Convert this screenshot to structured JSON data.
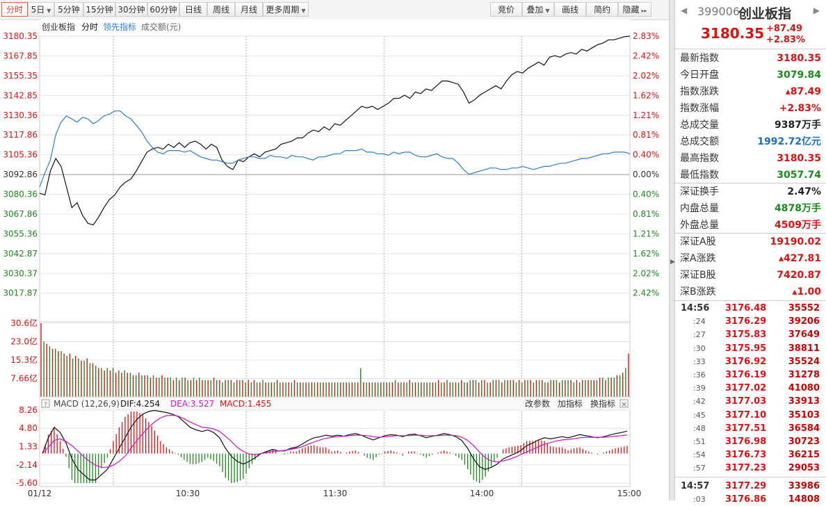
{
  "toolbar": {
    "left_buttons": [
      "分时",
      "5日",
      "5分钟",
      "15分钟",
      "30分钟",
      "60分钟",
      "日线",
      "周线",
      "月线",
      "更多周期"
    ],
    "right_buttons": [
      "竞价",
      "叠加",
      "画线",
      "简约",
      "隐藏"
    ]
  },
  "legend": {
    "name": "创业板指",
    "period": "分时",
    "lead": "领先指标",
    "amount": "成交额(元)"
  },
  "macd_bar": {
    "label": "MACD (12,26,9)",
    "dif": "DIF:4.254",
    "dea": "DEA:3.527",
    "macd": "MACD:1.455",
    "buttons": [
      "改参数",
      "加指标",
      "换指标"
    ]
  },
  "stock": {
    "code": "399006",
    "name": "创业板指",
    "price": "3180.35",
    "change": "+87.49",
    "change_pct": "+2.83%"
  },
  "stats": [
    {
      "label": "最新指数",
      "value": "3180.35",
      "color": "red"
    },
    {
      "label": "今日开盘",
      "value": "3079.84",
      "color": "green"
    },
    {
      "label": "指数涨跌",
      "value": "▴87.49",
      "color": "red"
    },
    {
      "label": "指数涨幅",
      "value": "+2.83%",
      "color": "red"
    },
    {
      "label": "总成交量",
      "value": "9387万手",
      "color": "dark"
    },
    {
      "label": "总成交额",
      "value": "1992.72亿元",
      "color": "blue"
    },
    {
      "label": "最高指数",
      "value": "3180.35",
      "color": "red"
    },
    {
      "label": "最低指数",
      "value": "3057.74",
      "color": "green"
    },
    {
      "label": "深证换手",
      "value": "2.47%",
      "color": "dark"
    },
    {
      "label": "内盘总量",
      "value": "4878万手",
      "color": "green"
    },
    {
      "label": "外盘总量",
      "value": "4509万手",
      "color": "red"
    },
    {
      "label": "深证A股",
      "value": "19190.02",
      "color": "red"
    },
    {
      "label": "深A涨跌",
      "value": "▴427.81",
      "color": "red"
    },
    {
      "label": "深证B股",
      "value": "7420.87",
      "color": "red"
    },
    {
      "label": "深B涨跌",
      "value": "▴1.00",
      "color": "red"
    }
  ],
  "ticks": [
    {
      "time": "14:56",
      "price": "3176.48",
      "vol": "35552"
    },
    {
      "time": ":24",
      "price": "3176.29",
      "vol": "39206"
    },
    {
      "time": ":27",
      "price": "3175.83",
      "vol": "37649"
    },
    {
      "time": ":30",
      "price": "3175.95",
      "vol": "38811"
    },
    {
      "time": ":33",
      "price": "3176.92",
      "vol": "35524"
    },
    {
      "time": ":36",
      "price": "3176.19",
      "vol": "31278"
    },
    {
      "time": ":39",
      "price": "3177.02",
      "vol": "41080"
    },
    {
      "time": ":42",
      "price": "3177.03",
      "vol": "33913"
    },
    {
      "time": ":45",
      "price": "3177.10",
      "vol": "35103"
    },
    {
      "time": ":48",
      "price": "3177.51",
      "vol": "36584"
    },
    {
      "time": ":51",
      "price": "3176.98",
      "vol": "30723"
    },
    {
      "time": ":54",
      "price": "3176.73",
      "vol": "36215"
    },
    {
      "time": ":57",
      "price": "3177.23",
      "vol": "29053"
    },
    {
      "time": "14:57",
      "price": "3177.29",
      "vol": "33986"
    },
    {
      "time": ":03",
      "price": "3176.86",
      "vol": "14808"
    }
  ],
  "colors": {
    "up": "#e01010",
    "down": "#1a8a1a",
    "price_line": "#111111",
    "lead_line": "#2a7fd0",
    "dif": "#111111",
    "dea": "#d010d0",
    "grid": "#e4e4e4",
    "grid_dash": "#b0b0b0"
  },
  "chart_data": {
    "type": "line",
    "title": "创业板指 分时",
    "prev_close": 3092.86,
    "y_labels_left": [
      "3180.35",
      "3167.85",
      "3155.35",
      "3142.85",
      "3130.36",
      "3117.86",
      "3105.36",
      "3092.86",
      "3080.36",
      "3067.86",
      "3055.36",
      "3042.87",
      "3030.37",
      "3017.87"
    ],
    "y_labels_right": [
      "2.83%",
      "2.42%",
      "2.02%",
      "1.62%",
      "1.21%",
      "0.81%",
      "0.40%",
      "0.00%",
      "0.40%",
      "0.81%",
      "1.21%",
      "1.62%",
      "2.02%",
      "2.42%"
    ],
    "x_labels": [
      "01/12",
      "10:30",
      "11:30",
      "14:00",
      "15:00"
    ],
    "price_series": {
      "name": "创业板指",
      "points": [
        [
          0,
          3081
        ],
        [
          2,
          3080
        ],
        [
          4,
          3095
        ],
        [
          6,
          3103
        ],
        [
          8,
          3098
        ],
        [
          10,
          3085
        ],
        [
          12,
          3072
        ],
        [
          14,
          3075
        ],
        [
          16,
          3067
        ],
        [
          18,
          3062
        ],
        [
          20,
          3061
        ],
        [
          22,
          3066
        ],
        [
          24,
          3072
        ],
        [
          26,
          3077
        ],
        [
          28,
          3080
        ],
        [
          30,
          3085
        ],
        [
          32,
          3088
        ],
        [
          34,
          3090
        ],
        [
          36,
          3095
        ],
        [
          38,
          3101
        ],
        [
          40,
          3107
        ],
        [
          42,
          3109
        ],
        [
          44,
          3110
        ],
        [
          46,
          3109
        ],
        [
          48,
          3112
        ],
        [
          50,
          3110
        ],
        [
          52,
          3113
        ],
        [
          54,
          3110
        ],
        [
          56,
          3113
        ],
        [
          58,
          3114
        ],
        [
          60,
          3112
        ],
        [
          62,
          3109
        ],
        [
          64,
          3112
        ],
        [
          66,
          3110
        ],
        [
          68,
          3102
        ],
        [
          70,
          3098
        ],
        [
          72,
          3096
        ],
        [
          74,
          3102
        ],
        [
          76,
          3101
        ],
        [
          78,
          3104
        ],
        [
          80,
          3106
        ],
        [
          82,
          3104
        ],
        [
          84,
          3107
        ],
        [
          86,
          3108
        ],
        [
          88,
          3109
        ],
        [
          90,
          3112
        ],
        [
          92,
          3113
        ],
        [
          94,
          3114
        ],
        [
          96,
          3116
        ],
        [
          98,
          3116
        ],
        [
          100,
          3119
        ],
        [
          102,
          3121
        ],
        [
          104,
          3120
        ],
        [
          106,
          3123
        ],
        [
          108,
          3121
        ],
        [
          110,
          3125
        ],
        [
          112,
          3124
        ],
        [
          114,
          3127
        ],
        [
          116,
          3130
        ],
        [
          118,
          3133
        ],
        [
          120,
          3136
        ],
        [
          122,
          3135
        ],
        [
          124,
          3136
        ],
        [
          126,
          3134
        ],
        [
          128,
          3136
        ],
        [
          130,
          3138
        ],
        [
          132,
          3141
        ],
        [
          134,
          3141
        ],
        [
          136,
          3143
        ],
        [
          138,
          3141
        ],
        [
          140,
          3145
        ],
        [
          142,
          3144
        ],
        [
          144,
          3147
        ],
        [
          146,
          3146
        ],
        [
          148,
          3149
        ],
        [
          150,
          3152
        ],
        [
          152,
          3152
        ],
        [
          154,
          3151
        ],
        [
          156,
          3150
        ],
        [
          158,
          3145
        ],
        [
          160,
          3138
        ],
        [
          162,
          3140
        ],
        [
          164,
          3143
        ],
        [
          166,
          3145
        ],
        [
          168,
          3147
        ],
        [
          170,
          3149
        ],
        [
          172,
          3147
        ],
        [
          174,
          3152
        ],
        [
          176,
          3156
        ],
        [
          178,
          3158
        ],
        [
          180,
          3157
        ],
        [
          182,
          3160
        ],
        [
          184,
          3162
        ],
        [
          186,
          3164
        ],
        [
          188,
          3162
        ],
        [
          190,
          3167
        ],
        [
          192,
          3168
        ],
        [
          194,
          3167
        ],
        [
          196,
          3169
        ],
        [
          198,
          3170
        ],
        [
          200,
          3169
        ],
        [
          202,
          3172
        ],
        [
          204,
          3171
        ],
        [
          206,
          3173
        ],
        [
          208,
          3175
        ],
        [
          210,
          3176
        ],
        [
          212,
          3178
        ],
        [
          214,
          3178
        ],
        [
          216,
          3179
        ],
        [
          218,
          3180
        ],
        [
          220,
          3180.35
        ]
      ]
    },
    "lead_series": {
      "name": "领先指标",
      "points": [
        [
          0,
          3085
        ],
        [
          2,
          3094
        ],
        [
          4,
          3102
        ],
        [
          6,
          3118
        ],
        [
          8,
          3126
        ],
        [
          10,
          3130
        ],
        [
          12,
          3128
        ],
        [
          14,
          3126
        ],
        [
          16,
          3129
        ],
        [
          18,
          3128
        ],
        [
          20,
          3125
        ],
        [
          22,
          3127
        ],
        [
          24,
          3130
        ],
        [
          26,
          3131
        ],
        [
          28,
          3133
        ],
        [
          30,
          3133
        ],
        [
          32,
          3130
        ],
        [
          34,
          3128
        ],
        [
          36,
          3124
        ],
        [
          38,
          3120
        ],
        [
          40,
          3114
        ],
        [
          42,
          3110
        ],
        [
          44,
          3107
        ],
        [
          46,
          3106
        ],
        [
          48,
          3108
        ],
        [
          50,
          3108
        ],
        [
          52,
          3108
        ],
        [
          54,
          3107
        ],
        [
          56,
          3108
        ],
        [
          58,
          3106
        ],
        [
          60,
          3104
        ],
        [
          62,
          3103
        ],
        [
          64,
          3102
        ],
        [
          66,
          3102
        ],
        [
          68,
          3101
        ],
        [
          70,
          3100
        ],
        [
          72,
          3100
        ],
        [
          74,
          3102
        ],
        [
          76,
          3103
        ],
        [
          78,
          3104
        ],
        [
          80,
          3104
        ],
        [
          82,
          3103
        ],
        [
          84,
          3103
        ],
        [
          86,
          3105
        ],
        [
          88,
          3104
        ],
        [
          90,
          3104
        ],
        [
          92,
          3103
        ],
        [
          94,
          3105
        ],
        [
          96,
          3104
        ],
        [
          98,
          3104
        ],
        [
          100,
          3103
        ],
        [
          102,
          3102
        ],
        [
          104,
          3104
        ],
        [
          106,
          3104
        ],
        [
          108,
          3105
        ],
        [
          110,
          3106
        ],
        [
          112,
          3106
        ],
        [
          114,
          3108
        ],
        [
          116,
          3108
        ],
        [
          118,
          3108
        ],
        [
          120,
          3109
        ],
        [
          122,
          3107
        ],
        [
          124,
          3107
        ],
        [
          126,
          3106
        ],
        [
          128,
          3106
        ],
        [
          130,
          3105
        ],
        [
          132,
          3107
        ],
        [
          134,
          3106
        ],
        [
          136,
          3107
        ],
        [
          138,
          3107
        ],
        [
          140,
          3105
        ],
        [
          142,
          3104
        ],
        [
          144,
          3104
        ],
        [
          146,
          3105
        ],
        [
          148,
          3106
        ],
        [
          150,
          3104
        ],
        [
          152,
          3103
        ],
        [
          154,
          3103
        ],
        [
          156,
          3100
        ],
        [
          158,
          3096
        ],
        [
          160,
          3093
        ],
        [
          162,
          3094
        ],
        [
          164,
          3095
        ],
        [
          166,
          3096
        ],
        [
          168,
          3097
        ],
        [
          170,
          3097
        ],
        [
          172,
          3096
        ],
        [
          174,
          3096
        ],
        [
          176,
          3097
        ],
        [
          178,
          3097
        ],
        [
          180,
          3098
        ],
        [
          182,
          3097
        ],
        [
          184,
          3096
        ],
        [
          186,
          3097
        ],
        [
          188,
          3098
        ],
        [
          190,
          3098
        ],
        [
          192,
          3099
        ],
        [
          194,
          3100
        ],
        [
          196,
          3100
        ],
        [
          198,
          3101
        ],
        [
          200,
          3102
        ],
        [
          202,
          3103
        ],
        [
          204,
          3103
        ],
        [
          206,
          3104
        ],
        [
          208,
          3105
        ],
        [
          210,
          3106
        ],
        [
          212,
          3106
        ],
        [
          214,
          3107
        ],
        [
          216,
          3107
        ],
        [
          218,
          3107
        ],
        [
          220,
          3106
        ]
      ]
    },
    "volume_labels": [
      "30.6亿",
      "23.0亿",
      "15.3亿",
      "7.66亿"
    ],
    "volume_max": 30.6,
    "volume": [
      30.6,
      23,
      22,
      21,
      20,
      20,
      19,
      19,
      18,
      17,
      18,
      16,
      17,
      16,
      15,
      15,
      16,
      14,
      14,
      13,
      12,
      12,
      11,
      12,
      11,
      12,
      10,
      11,
      10,
      11,
      10,
      10,
      9,
      9,
      10,
      9,
      9,
      9,
      8,
      9,
      8,
      8,
      9,
      8,
      8,
      8,
      7,
      8,
      7,
      8,
      8,
      7,
      7,
      8,
      7,
      8,
      7,
      7,
      7,
      7,
      8,
      7,
      7,
      6,
      7,
      7,
      7,
      6,
      7,
      7,
      7,
      6,
      7,
      6,
      7,
      6,
      6,
      7,
      6,
      6,
      6,
      6,
      7,
      6,
      6,
      6,
      6,
      6,
      7,
      6,
      6,
      6,
      6,
      6,
      6,
      6,
      6,
      6,
      6,
      6,
      6,
      6,
      6,
      6,
      6,
      6,
      6,
      6,
      6,
      6,
      6,
      12,
      6,
      6,
      6,
      6,
      6,
      6,
      6,
      6,
      6,
      6,
      6,
      7,
      6,
      6,
      6,
      6,
      7,
      6,
      6,
      6,
      6,
      6,
      6,
      6,
      6,
      6,
      7,
      6,
      6,
      7,
      6,
      6,
      6,
      6,
      7,
      6,
      6,
      7,
      7,
      7,
      6,
      7,
      7,
      6,
      6,
      7,
      7,
      7,
      6,
      7,
      7,
      7,
      7,
      6,
      7,
      6,
      7,
      7,
      7,
      6,
      7,
      7,
      7,
      6,
      6,
      7,
      7,
      7,
      6,
      7,
      7,
      7,
      7,
      6,
      7,
      6,
      7,
      7,
      7,
      7,
      7,
      7,
      8,
      8,
      7,
      8,
      8,
      8,
      9,
      9,
      10,
      12,
      18
    ],
    "volume_colors": "alternating",
    "macd_labels": [
      "8.26",
      "4.80",
      "1.33",
      "-2.14",
      "-5.60"
    ],
    "macd_range": [
      -5.6,
      8.26
    ],
    "dif": [
      0,
      3,
      5,
      4,
      2,
      -1,
      -3,
      -4,
      -5,
      -5,
      -4,
      -3,
      -1,
      1,
      3,
      5,
      6.5,
      7.5,
      8,
      8.2,
      8,
      7.8,
      7.5,
      7,
      6,
      5,
      4.5,
      4.2,
      4.5,
      4,
      3,
      1,
      -0.5,
      -1.5,
      -2,
      -1.5,
      -0.8,
      0,
      0.4,
      0.8,
      0.5,
      0.5,
      1,
      1.2,
      1.8,
      2.5,
      3,
      3.2,
      3.5,
      3.3,
      3.5,
      3.3,
      3.6,
      3.8,
      3.5,
      3,
      2.6,
      3,
      3.4,
      3.6,
      3.5,
      3.2,
      3.6,
      3.7,
      3.4,
      3,
      3.3,
      3.5,
      3.8,
      3.6,
      3.2,
      2.5,
      1,
      -1,
      -2.5,
      -3,
      -2.6,
      -2,
      -1,
      -0.5,
      0,
      0.6,
      1.5,
      2,
      2.6,
      3,
      2.8,
      3,
      3.2,
      3,
      3.3,
      3.6,
      3.4,
      3.2,
      3,
      3.2,
      3.5,
      3.8,
      4,
      4.254
    ],
    "dea": [
      0,
      1.2,
      2.5,
      2.8,
      2.3,
      1.5,
      0.5,
      -0.6,
      -1.5,
      -2.2,
      -2.6,
      -2.6,
      -2.2,
      -1.5,
      -0.5,
      1,
      2.5,
      3.8,
      5,
      6,
      6.8,
      7.2,
      7.3,
      7.1,
      6.6,
      6,
      5.5,
      5,
      4.9,
      4.7,
      4.2,
      3.3,
      2.3,
      1.2,
      0.4,
      -0.1,
      -0.2,
      0,
      0.2,
      0.4,
      0.5,
      0.6,
      0.8,
      1,
      1.3,
      1.8,
      2.2,
      2.6,
      2.9,
      3.1,
      3.2,
      3.3,
      3.4,
      3.5,
      3.5,
      3.4,
      3.2,
      3.1,
      3.2,
      3.3,
      3.4,
      3.4,
      3.4,
      3.5,
      3.5,
      3.4,
      3.4,
      3.4,
      3.5,
      3.5,
      3.4,
      3.1,
      2.5,
      1.5,
      0.3,
      -0.8,
      -1.4,
      -1.6,
      -1.4,
      -1.1,
      -0.7,
      -0.2,
      0.3,
      0.8,
      1.3,
      1.8,
      2.1,
      2.4,
      2.6,
      2.7,
      2.8,
      3,
      3.1,
      3.1,
      3.1,
      3.1,
      3.2,
      3.3,
      3.4,
      3.527
    ]
  }
}
